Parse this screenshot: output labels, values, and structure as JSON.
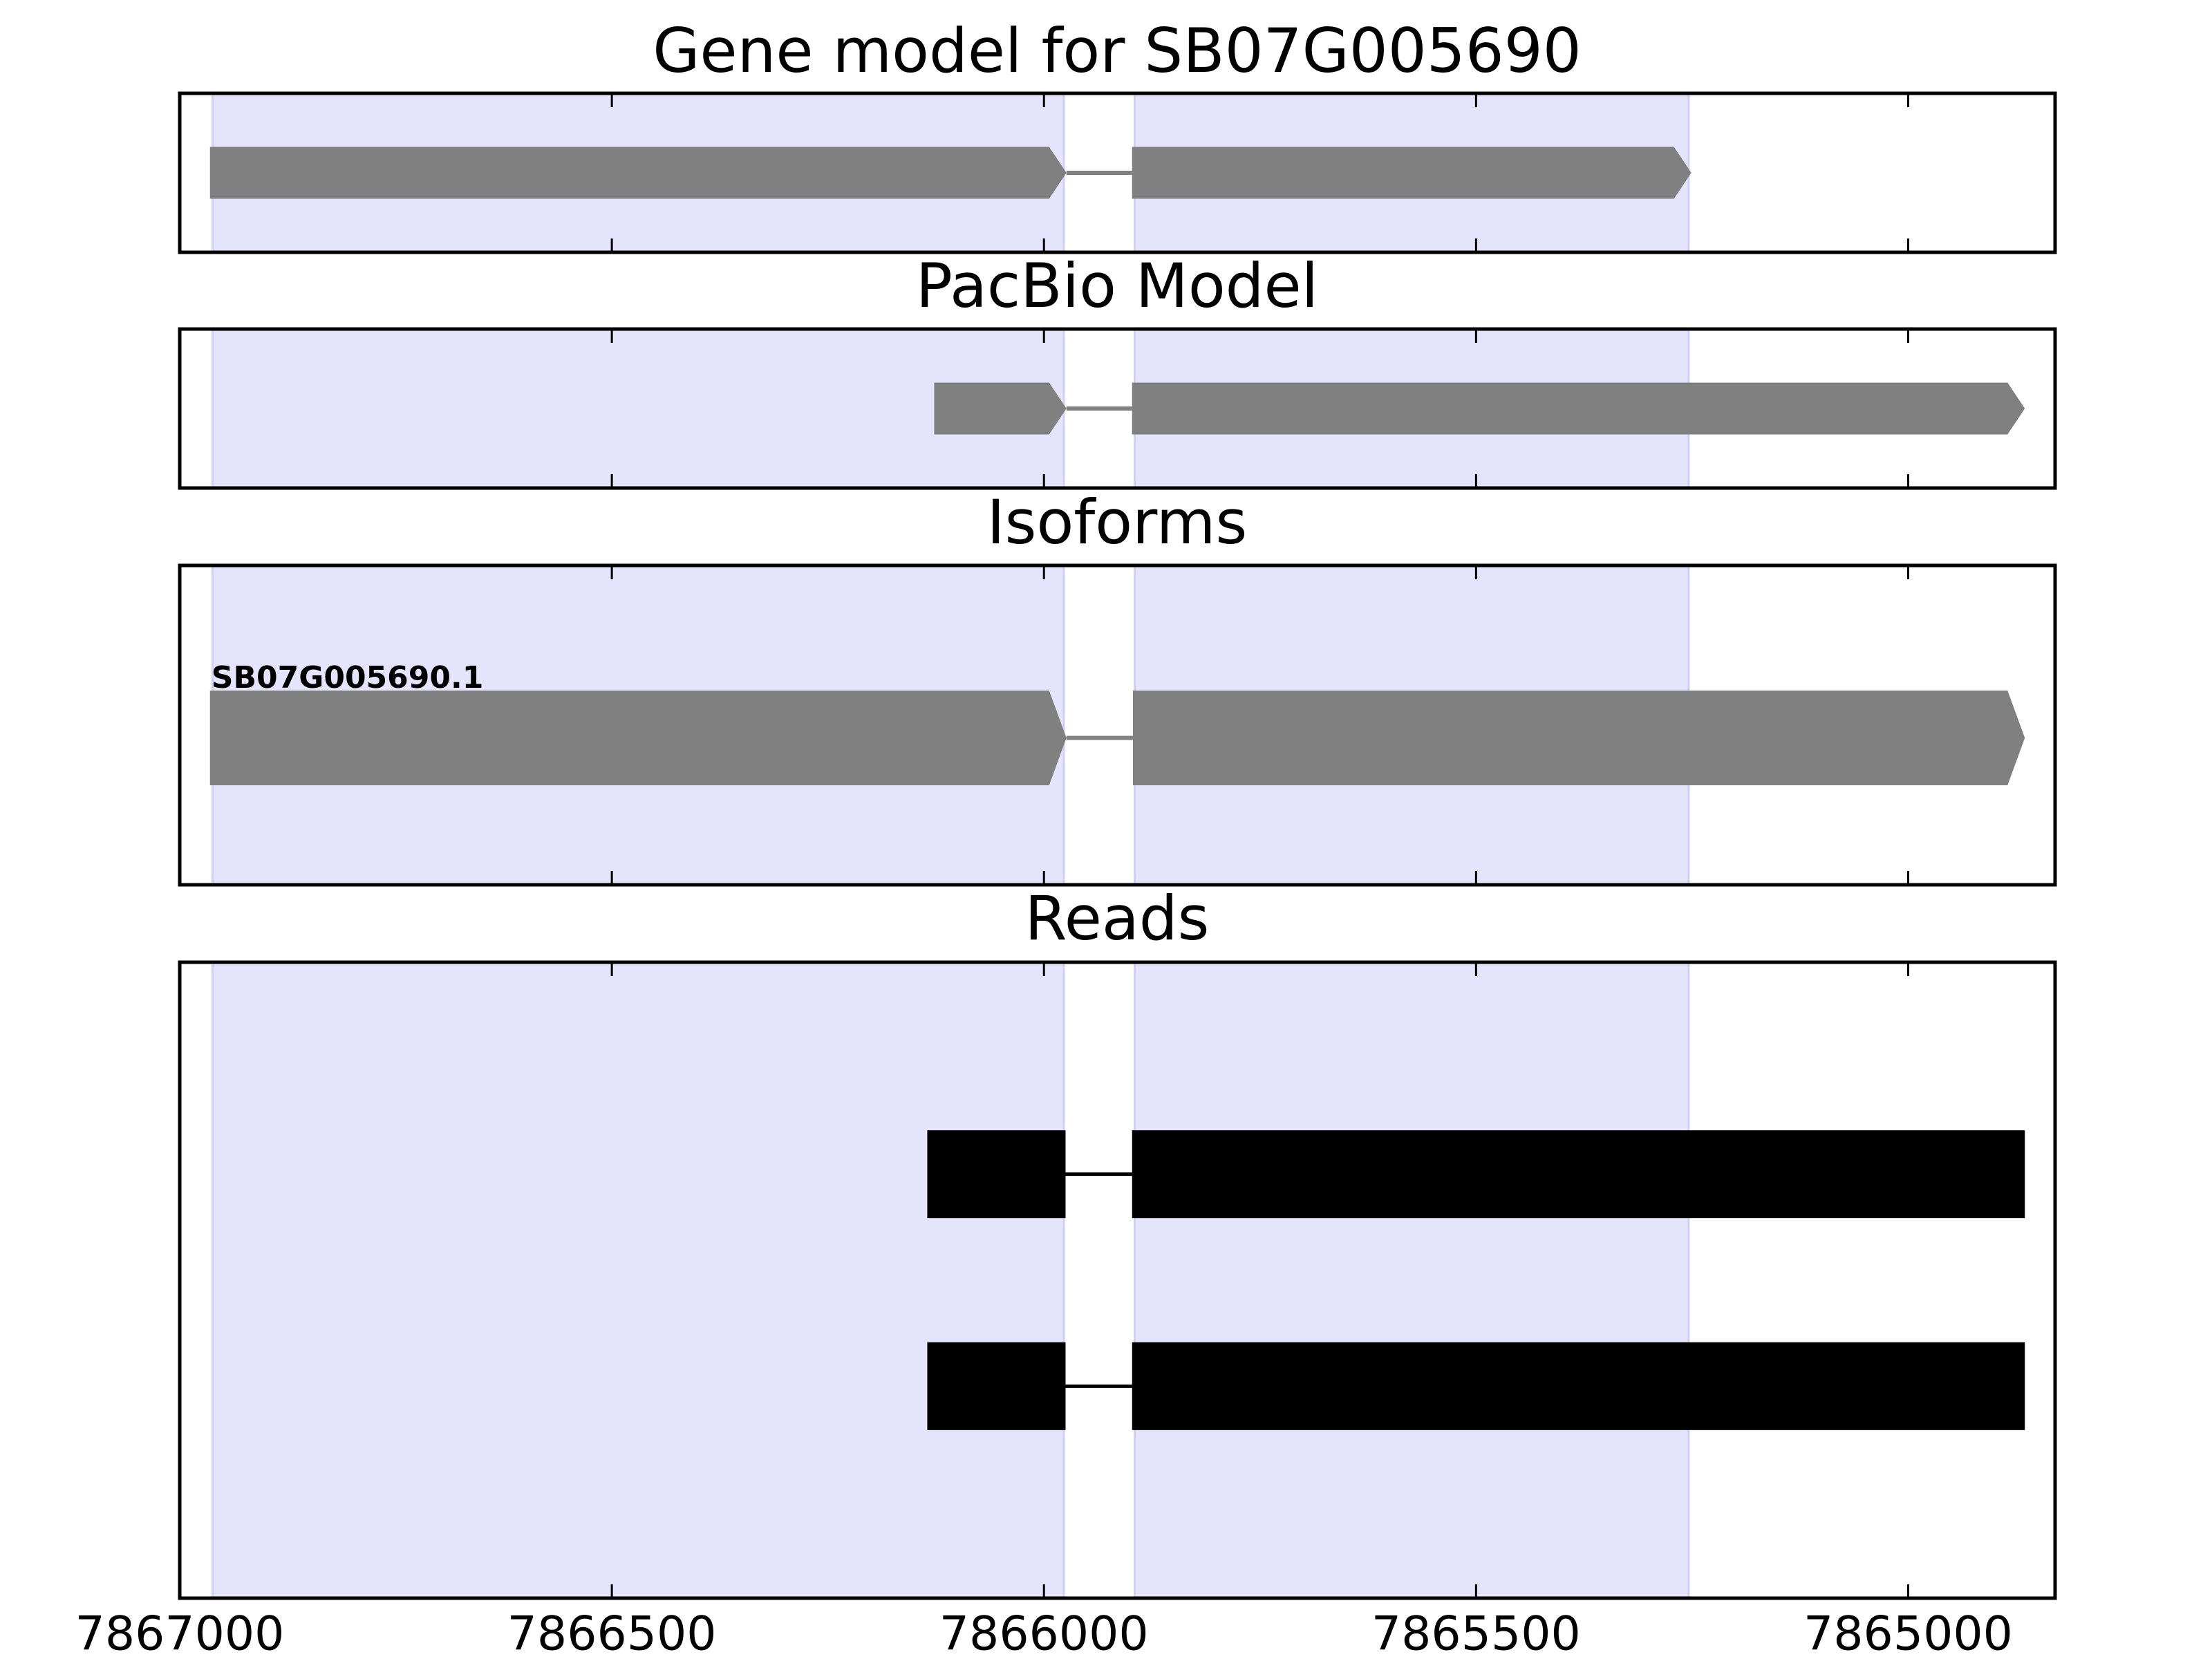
{
  "chart_data": [
    {
      "type": "gene_model",
      "title": "Gene model for SB07G005690",
      "xlim": [
        7867000,
        7864830
      ],
      "xticks": [
        7867000,
        7866500,
        7866000,
        7865500,
        7865000
      ],
      "highlights": [
        [
          7866962,
          7865977
        ],
        [
          7865895,
          7865254
        ]
      ],
      "highlight_color": "#e4e4fc",
      "color": "#808080",
      "features": [
        {
          "exons": [
            [
              7866965,
              7865974
            ],
            [
              7865898,
              7865251
            ]
          ]
        }
      ]
    },
    {
      "type": "gene_model",
      "title": "PacBio Model",
      "xlim": [
        7867000,
        7864830
      ],
      "xticks": [
        7867000,
        7866500,
        7866000,
        7865500,
        7865000
      ],
      "highlights": [
        [
          7866962,
          7865977
        ],
        [
          7865895,
          7865254
        ]
      ],
      "highlight_color": "#e4e4fc",
      "color": "#808080",
      "features": [
        {
          "exons": [
            [
              7866127,
              7865974
            ],
            [
              7865898,
              7864865
            ]
          ]
        }
      ]
    },
    {
      "type": "gene_model",
      "title": "Isoforms",
      "xlim": [
        7867000,
        7864830
      ],
      "xticks": [
        7867000,
        7866500,
        7866000,
        7865500,
        7865000
      ],
      "highlights": [
        [
          7866962,
          7865977
        ],
        [
          7865895,
          7865254
        ]
      ],
      "highlight_color": "#e4e4fc",
      "color": "#808080",
      "features": [
        {
          "name": "SB07G005690.1",
          "exons": [
            [
              7866965,
              7865974
            ],
            [
              7865897,
              7864865
            ]
          ]
        }
      ]
    },
    {
      "type": "reads",
      "title": "Reads",
      "xlim": [
        7867000,
        7864830
      ],
      "xticks": [
        7867000,
        7866500,
        7866000,
        7865500,
        7865000
      ],
      "tick_labels": true,
      "highlights": [
        [
          7866962,
          7865977
        ],
        [
          7865895,
          7865254
        ]
      ],
      "highlight_color": "#e4e4fc",
      "color": "#000000",
      "features": [
        {
          "exons": [
            [
              7866135,
              7865975
            ],
            [
              7865898,
              7864865
            ]
          ]
        },
        {
          "exons": [
            [
              7866135,
              7865975
            ],
            [
              7865898,
              7864865
            ]
          ]
        }
      ]
    }
  ]
}
